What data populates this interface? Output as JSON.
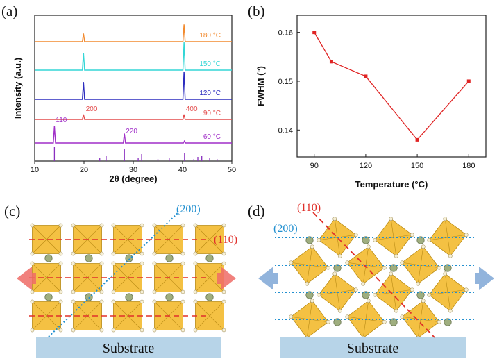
{
  "panels": {
    "a": "(a)",
    "b": "(b)",
    "c": "(c)",
    "d": "(d)"
  },
  "chart_data": [
    {
      "type": "line",
      "panel": "(a)",
      "xlabel": "2θ (degree)",
      "ylabel": "Intensity (a.u.)",
      "xlim": [
        10,
        50
      ],
      "xticks": [
        "10",
        "20",
        "30",
        "40",
        "50"
      ],
      "series": [
        {
          "name": "180 °C",
          "color": "#f28a2e",
          "peaks": [
            {
              "x": 19.9,
              "h": 0.45
            },
            {
              "x": 40.3,
              "h": 0.95
            }
          ]
        },
        {
          "name": "150 °C",
          "color": "#33d6d6",
          "peaks": [
            {
              "x": 19.9,
              "h": 0.62
            },
            {
              "x": 40.3,
              "h": 1.0
            }
          ]
        },
        {
          "name": "120 °C",
          "color": "#2d2dbf",
          "peaks": [
            {
              "x": 19.9,
              "h": 0.62
            },
            {
              "x": 40.3,
              "h": 1.0
            }
          ]
        },
        {
          "name": "90 °C",
          "color": "#e34b4b",
          "peaks": [
            {
              "x": 19.9,
              "h": 0.32
            },
            {
              "x": 40.3,
              "h": 0.32
            }
          ]
        },
        {
          "name": "60 °C",
          "color": "#a02fc8",
          "peaks": [
            {
              "x": 14.0,
              "h": 0.82
            },
            {
              "x": 28.2,
              "h": 0.45
            },
            {
              "x": 40.4,
              "h": 0.1
            }
          ]
        }
      ],
      "peak_labels": [
        {
          "text": "200",
          "x": 20.1,
          "series": "90 °C"
        },
        {
          "text": "400",
          "x": 40.4,
          "series": "90 °C"
        },
        {
          "text": "110",
          "x": 14.0,
          "series": "60 °C"
        },
        {
          "text": "220",
          "x": 28.2,
          "series": "60 °C"
        }
      ],
      "reference_lines": {
        "color": "#8a2fbf",
        "x": [
          14.0,
          23.2,
          24.5,
          28.2,
          31.0,
          31.7,
          35.0,
          37.3,
          40.4,
          42.3,
          43.1,
          43.9,
          45.5,
          47.0
        ],
        "h": [
          1.0,
          0.2,
          0.35,
          0.85,
          0.25,
          0.5,
          0.15,
          0.2,
          0.6,
          0.15,
          0.3,
          0.35,
          0.2,
          0.15
        ]
      }
    },
    {
      "type": "line",
      "panel": "(b)",
      "xlabel": "Temperature (°C)",
      "ylabel": "FWHM (°)",
      "color": "#e02424",
      "x": [
        90,
        100,
        120,
        150,
        180
      ],
      "y": [
        0.16,
        0.154,
        0.151,
        0.138,
        0.15
      ],
      "xlim": [
        80,
        190
      ],
      "ylim": [
        0.1345,
        0.1635
      ],
      "xticks": [
        90,
        120,
        150,
        180
      ],
      "yticks": [
        "0.14",
        "0.15",
        "0.16"
      ],
      "grid": false
    }
  ],
  "schematics": {
    "c": {
      "plane_200": "(200)",
      "plane_110": "(110)",
      "substrate": "Substrate"
    },
    "d": {
      "plane_200": "(200)",
      "plane_110": "(110)",
      "substrate": "Substrate"
    }
  },
  "colors": {
    "octahedron": "#f4c143",
    "octahedron_edge": "#b88a14",
    "cation": "#9fae7f",
    "substrate": "#b7d4e8",
    "plane_200": "#2290d0",
    "plane_110": "#e0302a",
    "arrow_c": "#ef6b66",
    "arrow_d": "#7fa7d6"
  }
}
